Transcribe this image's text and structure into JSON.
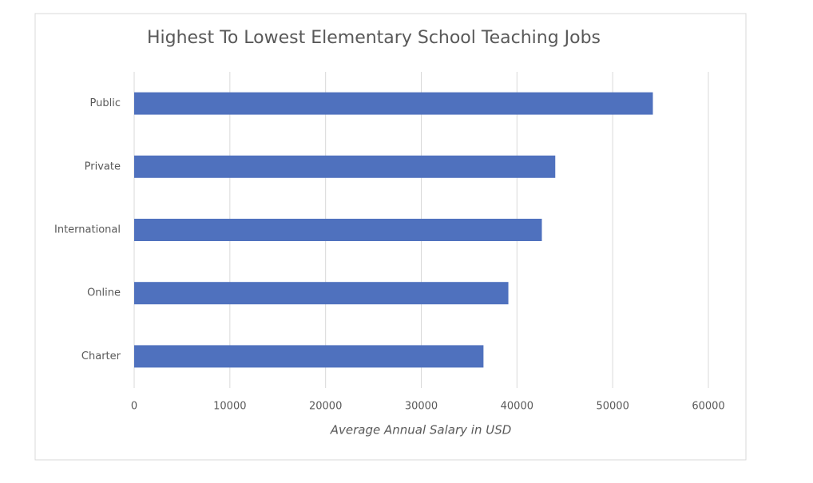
{
  "chart_data": {
    "type": "bar",
    "orientation": "horizontal",
    "title": "Highest To Lowest Elementary School Teaching Jobs",
    "x_label": "Average Annual Salary in USD",
    "categories": [
      "Public",
      "Private",
      "International",
      "Online",
      "Charter"
    ],
    "values": [
      54200,
      44000,
      42600,
      39100,
      36500
    ],
    "color": "#4f71be",
    "xlim": [
      0,
      60000
    ],
    "xticks": [
      0,
      10000,
      20000,
      30000,
      40000,
      50000,
      60000
    ],
    "grid": true
  }
}
